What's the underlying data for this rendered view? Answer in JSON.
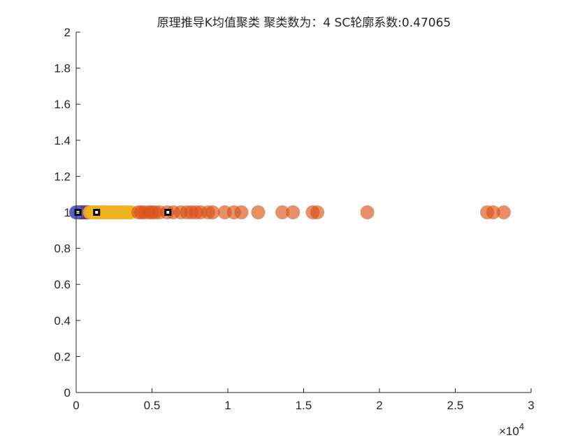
{
  "chart_data": {
    "type": "scatter",
    "title": "原理推导K均值聚类  聚类数为：4  SC轮廓系数:0.47065",
    "xlim": [
      0,
      30000
    ],
    "ylim": [
      0,
      2
    ],
    "x_exponent_label": "×10",
    "x_exponent_power": "4",
    "x_ticks": [
      0,
      5000,
      10000,
      15000,
      20000,
      25000,
      30000
    ],
    "x_tick_labels": [
      "0",
      "0.5",
      "1",
      "1.5",
      "2",
      "2.5",
      "3"
    ],
    "y_ticks": [
      0,
      0.2,
      0.4,
      0.6,
      0.8,
      1.0,
      1.2,
      1.4,
      1.6,
      1.8,
      2.0
    ],
    "y_tick_labels": [
      "0",
      "0.2",
      "0.4",
      "0.6",
      "0.8",
      "1",
      "1.2",
      "1.4",
      "1.6",
      "1.8",
      "2"
    ],
    "grid": false,
    "series": [
      {
        "color": "#7E2F8E",
        "y": 1,
        "x": [
          0,
          80,
          150,
          220,
          300,
          380,
          450,
          530,
          600,
          700,
          800
        ]
      },
      {
        "color": "#EDB120",
        "y": 1,
        "x": [
          900,
          1050,
          1200,
          1350,
          1500,
          1650,
          1800,
          1950,
          2100,
          2250,
          2400,
          2550,
          2700,
          2850,
          3000,
          3150,
          3300,
          3450,
          3600
        ]
      },
      {
        "color": "#D95319",
        "y": 1,
        "x": [
          4100,
          4300,
          4500,
          4800,
          5000,
          5200,
          5500,
          6000,
          6400,
          6900,
          7300,
          7600,
          7900,
          8200,
          8700,
          9000,
          9800,
          10400,
          10900,
          12000,
          13600,
          14300,
          15600,
          15900,
          19200,
          27100,
          27500,
          28200
        ]
      },
      {
        "color": "#4A6FD0",
        "y": 1,
        "x": [
          10
        ]
      }
    ],
    "centroids": {
      "marker": "square",
      "y": 1,
      "x": [
        120,
        1350,
        6050
      ]
    }
  }
}
